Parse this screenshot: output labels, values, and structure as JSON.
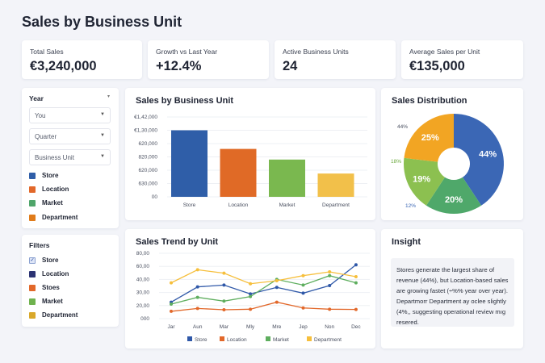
{
  "title": "Sales by Business Unit",
  "kpis": [
    {
      "label": "Total Sales",
      "value": "€3,240,000"
    },
    {
      "label": "Growth vs Last Year",
      "value": "+12.4%"
    },
    {
      "label": "Active Business Units",
      "value": "24"
    },
    {
      "label": "Average Sales per Unit",
      "value": "€135,000"
    }
  ],
  "controls": {
    "heading": "Year",
    "selects": [
      "You",
      "Quarter",
      "Business Unit"
    ],
    "legend": [
      {
        "label": "Store",
        "color": "#2f5ea8"
      },
      {
        "label": "Location",
        "color": "#e2682a"
      },
      {
        "label": "Market",
        "color": "#4fa56a"
      },
      {
        "label": "Department",
        "color": "#e07b1a"
      }
    ]
  },
  "filters": {
    "heading": "Filters",
    "items": [
      {
        "label": "Store",
        "color": "#dfe6f7",
        "checked": true
      },
      {
        "label": "Location",
        "color": "#2c3373"
      },
      {
        "label": "Stoes",
        "color": "#e2682a"
      },
      {
        "label": "Market",
        "color": "#6fb24e"
      },
      {
        "label": "Department",
        "color": "#d9a82a"
      }
    ]
  },
  "chart_data": [
    {
      "type": "bar",
      "title": "Sales by Business Unit",
      "categories": [
        "Store",
        "Location",
        "Market",
        "Department"
      ],
      "y_tick_labels": [
        "00",
        "630,000",
        "620,000",
        "820,000",
        "620,000",
        "€1,30,000",
        "€1,42,000"
      ],
      "values_in_tick_steps": [
        5.0,
        3.6,
        2.8,
        1.75
      ],
      "colors": [
        "#2f5ea8",
        "#e06a26",
        "#7ab84f",
        "#f2c04a"
      ],
      "grid": true
    },
    {
      "type": "line",
      "title": "Sales Trend by Unit",
      "categories": [
        "Jar",
        "Aun",
        "Mar",
        "Mly",
        "Mre",
        "Jep",
        "Non",
        "Dec"
      ],
      "y_tick_labels": [
        "000",
        "20,00",
        "30,00",
        "40,00",
        "60,00",
        "80,00"
      ],
      "series": [
        {
          "name": "Store",
          "color": "#2f58a8",
          "values_in_tick_steps": [
            1.26,
            2.43,
            2.57,
            1.89,
            2.39,
            1.95,
            2.53,
            4.12
          ]
        },
        {
          "name": "Location",
          "color": "#e2682a",
          "values_in_tick_steps": [
            0.56,
            0.78,
            0.68,
            0.72,
            1.26,
            0.82,
            0.72,
            0.7
          ]
        },
        {
          "name": "Market",
          "color": "#5eae5e",
          "values_in_tick_steps": [
            1.11,
            1.63,
            1.34,
            1.69,
            3.0,
            2.57,
            3.29,
            2.74
          ]
        },
        {
          "name": "Department",
          "color": "#f6bf3c",
          "values_in_tick_steps": [
            2.74,
            3.74,
            3.48,
            2.67,
            2.9,
            3.29,
            3.58,
            3.21
          ]
        }
      ],
      "legend": "bottom",
      "grid": true
    },
    {
      "type": "pie",
      "title": "Sales Distribution",
      "donut": true,
      "slices": [
        {
          "label": "44%",
          "value": 44,
          "color": "#3b67b5"
        },
        {
          "label": "20%",
          "value": 20,
          "color": "#4fa86a"
        },
        {
          "label": "19%",
          "value": 19,
          "color": "#8cc050"
        },
        {
          "label": "25%",
          "value": 25,
          "color": "#f2a523"
        }
      ],
      "outer_labels": [
        {
          "text": "44%",
          "color": "#4a5060"
        },
        {
          "text": "18%",
          "color": "#6aa83c"
        },
        {
          "text": "12%",
          "color": "#3b67b5"
        }
      ]
    }
  ],
  "insight": {
    "title": "Insight",
    "text": "Stores generate the largest share of revenue (44%), but Location-based sales are growing fastet (÷%% year over year). Departmorr Department ay oclee slightly (4%,, suggesting operational review mıg resered."
  }
}
